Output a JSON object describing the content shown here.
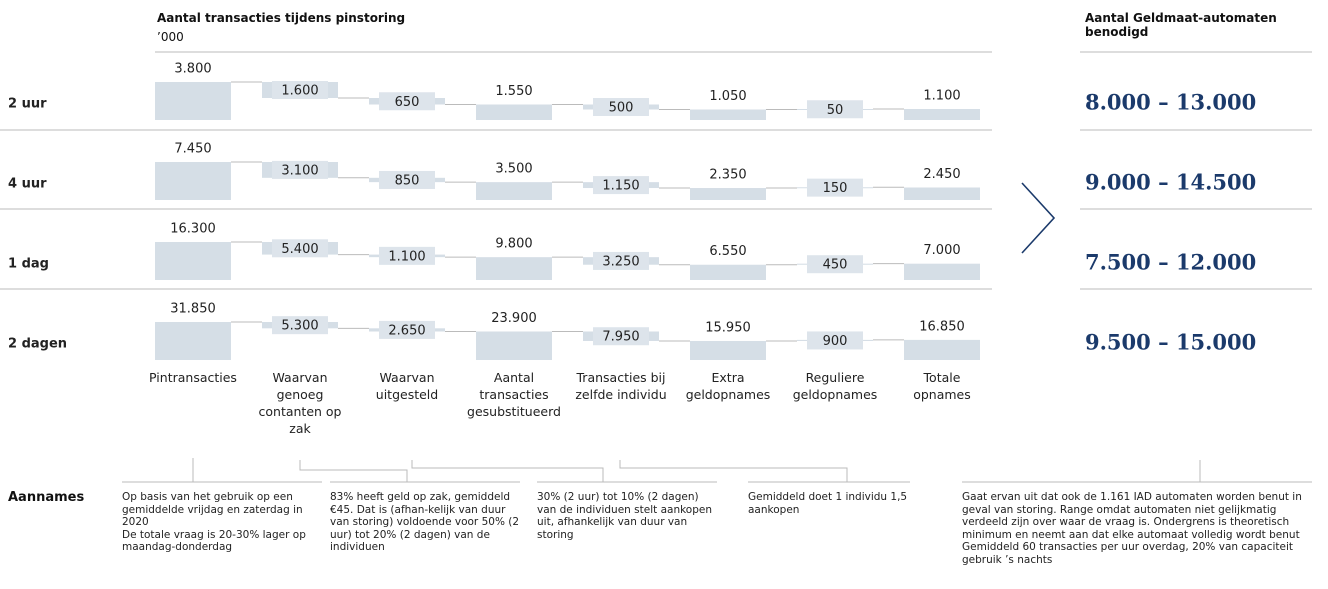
{
  "header": {
    "title": "Aantal transacties tijdens pinstoring",
    "subtitle": "’000",
    "right_title": "Aantal Geldmaat-automaten benodigd"
  },
  "chart_data": [
    {
      "type": "waterfall",
      "title": "2 uur",
      "steps": [
        "total",
        "decrease",
        "decrease",
        "total",
        "decrease",
        "total",
        "increase",
        "total"
      ],
      "color": "#d5dee6",
      "values": [
        3800,
        1600,
        650,
        1550,
        500,
        1050,
        50,
        1100
      ],
      "value_labels": [
        "3.800",
        "1.600",
        "650",
        "1.550",
        "500",
        "1.050",
        "50",
        "1.100"
      ],
      "result": "8.000 – 13.000"
    },
    {
      "type": "waterfall",
      "title": "4 uur",
      "steps": [
        "total",
        "decrease",
        "decrease",
        "total",
        "decrease",
        "total",
        "increase",
        "total"
      ],
      "color": "#d5dee6",
      "values": [
        7450,
        3100,
        850,
        3500,
        1150,
        2350,
        150,
        2450
      ],
      "value_labels": [
        "7.450",
        "3.100",
        "850",
        "3.500",
        "1.150",
        "2.350",
        "150",
        "2.450"
      ],
      "result": "9.000 – 14.500"
    },
    {
      "type": "waterfall",
      "title": "1 dag",
      "steps": [
        "total",
        "decrease",
        "decrease",
        "total",
        "decrease",
        "total",
        "increase",
        "total"
      ],
      "color": "#d5dee6",
      "values": [
        16300,
        5400,
        1100,
        9800,
        3250,
        6550,
        450,
        7000
      ],
      "value_labels": [
        "16.300",
        "5.400",
        "1.100",
        "9.800",
        "3.250",
        "6.550",
        "450",
        "7.000"
      ],
      "result": "7.500 – 12.000"
    },
    {
      "type": "waterfall",
      "title": "2 dagen",
      "steps": [
        "total",
        "decrease",
        "decrease",
        "total",
        "decrease",
        "total",
        "increase",
        "total"
      ],
      "color": "#d5dee6",
      "values": [
        31850,
        5300,
        2650,
        23900,
        7950,
        15950,
        900,
        16850
      ],
      "value_labels": [
        "31.850",
        "5.300",
        "2.650",
        "23.900",
        "7.950",
        "15.950",
        "900",
        "16.850"
      ],
      "result": "9.500 – 15.000",
      "categories": [
        "Pintransacties",
        "Waarvan genoeg contanten op zak",
        "Waarvan uitgesteld",
        "Aantal transacties gesubstitueerd",
        "Transacties bij zelfde individu",
        "Extra geldopnames",
        "Reguliere geldopnames",
        "Totale opnames"
      ]
    }
  ],
  "assumptions": {
    "label": "Aannames",
    "notes": [
      [
        "Op basis van het gebruik op een gemiddelde vrijdag en zaterdag in 2020",
        "De totale vraag is 20-30% lager op maandag-donderdag"
      ],
      [
        "83% heeft geld op zak, gemiddeld €45. Dat is (afhan-kelijk van duur van storing) voldoende voor 50% (2 uur) tot 20% (2 dagen) van de individuen"
      ],
      [
        "30% (2 uur) tot 10% (2 dagen) van de individuen stelt aankopen uit, afhankelijk van duur van storing"
      ],
      [
        "Gemiddeld doet 1 individu 1,5 aankopen"
      ],
      [
        "Gaat ervan uit dat ook de 1.161 IAD automaten worden benut in geval van storing. Range omdat automaten niet gelijkmatig verdeeld zijn over waar de vraag is. Ondergrens is theoretisch minimum en neemt aan dat elke automaat volledig wordt benut",
        "Gemiddeld 60 transacties per uur overdag, 20% van capaciteit gebruik ’s nachts"
      ]
    ]
  }
}
